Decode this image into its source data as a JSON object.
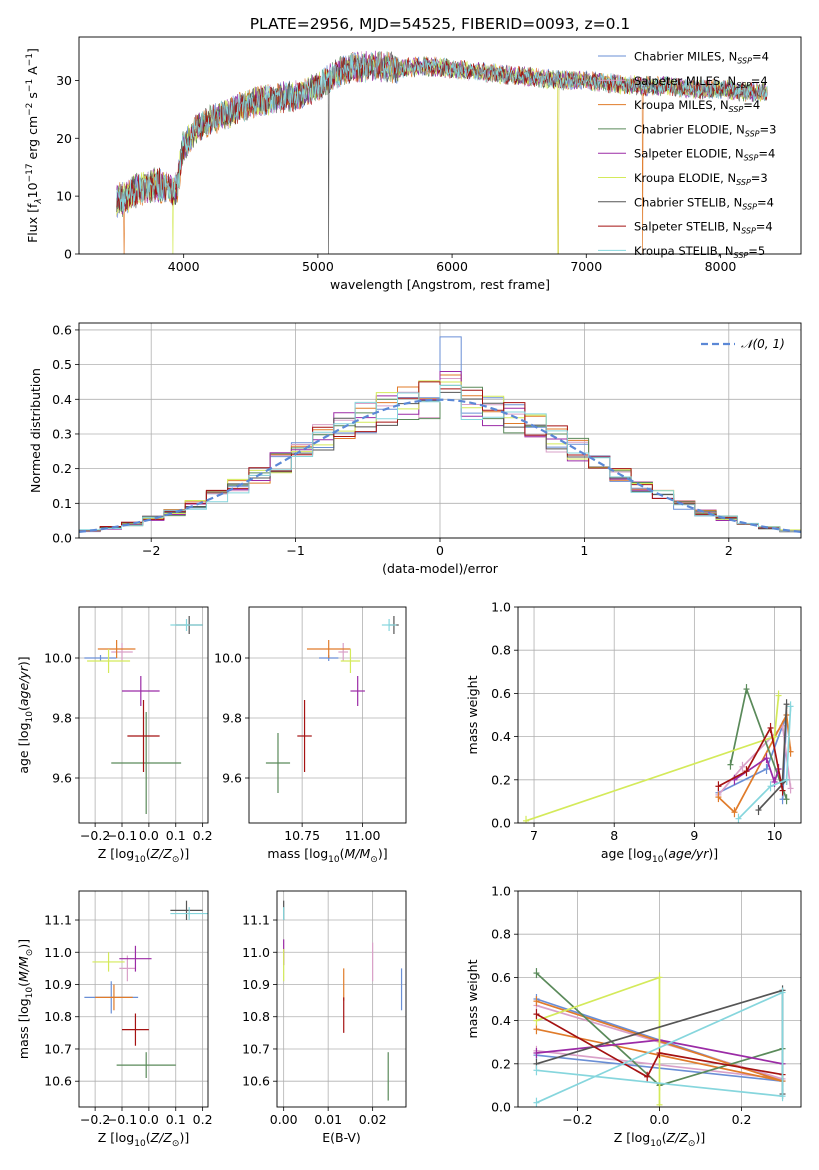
{
  "figure_title": "PLATE=2956, MJD=54525, FIBERID=0093, z=0.1",
  "colors": {
    "Chabrier MILES": "#6a8fd6",
    "Salpeter MILES": "#d9a0c8",
    "Kroupa MILES": "#e07b2a",
    "Chabrier ELODIE": "#5a8a5a",
    "Salpeter ELODIE": "#9b2ba6",
    "Kroupa ELODIE": "#d4ea5a",
    "Chabrier STELIB": "#555555",
    "Salpeter STELIB": "#a51212",
    "Kroupa STELIB": "#86d6dd"
  },
  "chart_data": [
    {
      "id": "spectrum",
      "type": "line",
      "xlabel": "wavelength [Angstrom, rest frame]",
      "ylabel": "Flux [f",
      "xlim": [
        3220,
        8600
      ],
      "ylim": [
        0,
        37.5
      ],
      "xticks": [
        4000,
        5000,
        6000,
        7000,
        8000
      ],
      "yticks": [
        0,
        10,
        20,
        30
      ],
      "legend": "upper-right",
      "grid": false,
      "series": [
        {
          "name": "Chabrier MILES",
          "base": "N",
          "sub": "SSP",
          "tail": "=4"
        },
        {
          "name": "Salpeter MILES",
          "base": "N",
          "sub": "SSP",
          "tail": "=4"
        },
        {
          "name": "Kroupa MILES",
          "base": "N",
          "sub": "SSP",
          "tail": "=4"
        },
        {
          "name": "Chabrier ELODIE",
          "base": "N",
          "sub": "SSP",
          "tail": "=3"
        },
        {
          "name": "Salpeter ELODIE",
          "base": "N",
          "sub": "SSP",
          "tail": "=4"
        },
        {
          "name": "Kroupa ELODIE",
          "base": "N",
          "sub": "SSP",
          "tail": "=3"
        },
        {
          "name": "Chabrier STELIB",
          "base": "N",
          "sub": "SSP",
          "tail": "=4"
        },
        {
          "name": "Salpeter STELIB",
          "base": "N",
          "sub": "SSP",
          "tail": "=4"
        },
        {
          "name": "Kroupa STELIB",
          "base": "N",
          "sub": "SSP",
          "tail": "=5"
        }
      ],
      "continuum": {
        "x": [
          3500,
          3650,
          3800,
          3950,
          3990,
          4100,
          4300,
          4500,
          4700,
          4860,
          5000,
          5200,
          5400,
          5600,
          5800,
          6000,
          6200,
          6400,
          6600,
          6800,
          7000,
          7200,
          7400,
          7600,
          7800,
          8000,
          8200,
          8350
        ],
        "y": [
          9,
          11,
          12,
          11,
          18,
          22,
          24,
          26,
          27,
          27.5,
          29,
          32,
          32.5,
          32,
          32.5,
          32,
          31.5,
          31,
          30.5,
          30,
          30,
          29.5,
          29,
          29,
          28.5,
          28.5,
          28,
          28
        ]
      },
      "dropouts": [
        {
          "series": "Kroupa MILES",
          "x": 3555
        },
        {
          "series": "Kroupa ELODIE",
          "x": 3920
        },
        {
          "series": "Chabrier STELIB",
          "x": 5080
        },
        {
          "series": "Kroupa MILES",
          "x": 6790
        },
        {
          "series": "Kroupa ELODIE",
          "x": 6790
        },
        {
          "series": "Kroupa MILES",
          "x": 7420
        }
      ]
    },
    {
      "id": "residual-hist",
      "type": "line",
      "xlabel": "(data-model)/error",
      "ylabel": "Normed distribution",
      "xlim": [
        -2.5,
        2.5
      ],
      "ylim": [
        0,
        0.62
      ],
      "xticks": [
        -2,
        -1,
        0,
        1,
        2
      ],
      "yticks": [
        0.0,
        0.1,
        0.2,
        0.3,
        0.4,
        0.5,
        0.6
      ],
      "grid": true,
      "legend": "upper-right",
      "curve": {
        "name": "𝒩(0, 1)",
        "mean": 0,
        "sigma": 1,
        "color": "#5b88d6"
      },
      "bins": 34,
      "bin_peaks": [
        0.58,
        0.46,
        0.47,
        0.44,
        0.48,
        0.45,
        0.42,
        0.43,
        0.44
      ]
    },
    {
      "id": "age-vs-Z",
      "type": "scatter",
      "xlabel": "Z [log",
      "ylabel": "age  [log",
      "xlim": [
        -0.26,
        0.22
      ],
      "ylim": [
        9.45,
        10.17
      ],
      "xticks": [
        -0.2,
        -0.1,
        0.0,
        0.1,
        0.2
      ],
      "yticks": [
        9.6,
        9.8,
        10.0
      ],
      "grid": true,
      "points": [
        {
          "series": "Chabrier MILES",
          "x": -0.18,
          "y": 10.0,
          "xerr": 0.06,
          "yerr": 0.01
        },
        {
          "series": "Salpeter MILES",
          "x": -0.1,
          "y": 10.02,
          "xerr": 0.04,
          "yerr": 0.03
        },
        {
          "series": "Kroupa MILES",
          "x": -0.12,
          "y": 10.03,
          "xerr": 0.07,
          "yerr": 0.03
        },
        {
          "series": "Chabrier ELODIE",
          "x": -0.01,
          "y": 9.65,
          "xerr": 0.13,
          "yerr": 0.17
        },
        {
          "series": "Salpeter ELODIE",
          "x": -0.03,
          "y": 9.89,
          "xerr": 0.07,
          "yerr": 0.05
        },
        {
          "series": "Kroupa ELODIE",
          "x": -0.15,
          "y": 9.99,
          "xerr": 0.08,
          "yerr": 0.04
        },
        {
          "series": "Chabrier STELIB",
          "x": 0.15,
          "y": 10.11,
          "xerr": 0.05,
          "yerr": 0.03
        },
        {
          "series": "Salpeter STELIB",
          "x": -0.02,
          "y": 9.74,
          "xerr": 0.06,
          "yerr": 0.12
        },
        {
          "series": "Kroupa STELIB",
          "x": 0.14,
          "y": 10.11,
          "xerr": 0.06,
          "yerr": 0.02
        }
      ]
    },
    {
      "id": "age-vs-mass",
      "type": "scatter",
      "xlabel": "mass [log",
      "ylabel": "",
      "xlim": [
        10.53,
        11.18
      ],
      "ylim": [
        9.45,
        10.17
      ],
      "xticks": [
        10.75,
        11.0
      ],
      "yticks": [
        9.6,
        9.8,
        10.0
      ],
      "grid": true,
      "points": [
        {
          "series": "Chabrier MILES",
          "x": 10.86,
          "y": 10.0,
          "xerr": 0.04,
          "yerr": 0.01
        },
        {
          "series": "Salpeter MILES",
          "x": 10.92,
          "y": 10.02,
          "xerr": 0.02,
          "yerr": 0.03
        },
        {
          "series": "Kroupa MILES",
          "x": 10.86,
          "y": 10.03,
          "xerr": 0.09,
          "yerr": 0.03
        },
        {
          "series": "Chabrier ELODIE",
          "x": 10.65,
          "y": 9.65,
          "xerr": 0.05,
          "yerr": 0.1
        },
        {
          "series": "Salpeter ELODIE",
          "x": 10.98,
          "y": 9.89,
          "xerr": 0.03,
          "yerr": 0.05
        },
        {
          "series": "Kroupa ELODIE",
          "x": 10.95,
          "y": 9.99,
          "xerr": 0.04,
          "yerr": 0.04
        },
        {
          "series": "Chabrier STELIB",
          "x": 11.13,
          "y": 10.11,
          "xerr": 0.02,
          "yerr": 0.03
        },
        {
          "series": "Salpeter STELIB",
          "x": 10.76,
          "y": 9.74,
          "xerr": 0.03,
          "yerr": 0.12
        },
        {
          "series": "Kroupa STELIB",
          "x": 11.11,
          "y": 10.11,
          "xerr": 0.03,
          "yerr": 0.02
        }
      ]
    },
    {
      "id": "massweight-vs-age",
      "type": "line",
      "xlabel": "age  [log",
      "ylabel": "mass weight",
      "xlim": [
        6.8,
        10.33
      ],
      "ylim": [
        0,
        1
      ],
      "xticks": [
        7,
        8,
        9,
        10
      ],
      "yticks": [
        0.0,
        0.2,
        0.4,
        0.6,
        0.8,
        1.0
      ],
      "grid": true,
      "series": [
        {
          "name": "Chabrier MILES",
          "x": [
            9.3,
            9.9,
            10.15,
            10.1
          ],
          "y": [
            0.14,
            0.25,
            0.5,
            0.11
          ]
        },
        {
          "name": "Salpeter MILES",
          "x": [
            9.3,
            9.6,
            10.1,
            10.2
          ],
          "y": [
            0.13,
            0.26,
            0.45,
            0.16
          ]
        },
        {
          "name": "Kroupa MILES",
          "x": [
            9.3,
            9.5,
            10.15,
            10.2
          ],
          "y": [
            0.12,
            0.05,
            0.5,
            0.33
          ]
        },
        {
          "name": "Chabrier ELODIE",
          "x": [
            9.45,
            9.65,
            10.15
          ],
          "y": [
            0.27,
            0.62,
            0.11
          ]
        },
        {
          "name": "Salpeter ELODIE",
          "x": [
            9.5,
            9.9,
            10.0,
            10.05
          ],
          "y": [
            0.2,
            0.3,
            0.19,
            0.25
          ]
        },
        {
          "name": "Kroupa ELODIE",
          "x": [
            6.9,
            10.0,
            10.05
          ],
          "y": [
            0.01,
            0.4,
            0.59
          ]
        },
        {
          "name": "Chabrier STELIB",
          "x": [
            9.8,
            10.15,
            10.1,
            10.15
          ],
          "y": [
            0.06,
            0.2,
            0.2,
            0.55
          ]
        },
        {
          "name": "Salpeter STELIB",
          "x": [
            9.3,
            9.65,
            9.95,
            10.1
          ],
          "y": [
            0.17,
            0.24,
            0.44,
            0.15
          ]
        },
        {
          "name": "Kroupa STELIB",
          "x": [
            9.55,
            9.95,
            10.15,
            10.2
          ],
          "y": [
            0.02,
            0.17,
            0.2,
            0.54
          ]
        }
      ]
    },
    {
      "id": "mass-vs-Z",
      "type": "scatter",
      "xlabel": "Z [log",
      "ylabel": "mass [log",
      "xlim": [
        -0.26,
        0.22
      ],
      "ylim": [
        10.52,
        11.19
      ],
      "xticks": [
        -0.2,
        -0.1,
        0.0,
        0.1,
        0.2
      ],
      "yticks": [
        10.6,
        10.7,
        10.8,
        10.9,
        11.0,
        11.1
      ],
      "grid": true,
      "points": [
        {
          "series": "Chabrier MILES",
          "x": -0.14,
          "y": 10.86,
          "xerr": 0.1,
          "yerr": 0.05
        },
        {
          "series": "Salpeter MILES",
          "x": -0.08,
          "y": 10.95,
          "xerr": 0.03,
          "yerr": 0.04
        },
        {
          "series": "Kroupa MILES",
          "x": -0.13,
          "y": 10.86,
          "xerr": 0.07,
          "yerr": 0.04
        },
        {
          "series": "Chabrier ELODIE",
          "x": -0.01,
          "y": 10.65,
          "xerr": 0.11,
          "yerr": 0.04
        },
        {
          "series": "Salpeter ELODIE",
          "x": -0.05,
          "y": 10.98,
          "xerr": 0.06,
          "yerr": 0.04
        },
        {
          "series": "Kroupa ELODIE",
          "x": -0.15,
          "y": 10.97,
          "xerr": 0.06,
          "yerr": 0.03
        },
        {
          "series": "Chabrier STELIB",
          "x": 0.14,
          "y": 11.13,
          "xerr": 0.06,
          "yerr": 0.03
        },
        {
          "series": "Salpeter STELIB",
          "x": -0.05,
          "y": 10.76,
          "xerr": 0.05,
          "yerr": 0.05
        },
        {
          "series": "Kroupa STELIB",
          "x": 0.15,
          "y": 11.12,
          "xerr": 0.07,
          "yerr": 0.02
        }
      ]
    },
    {
      "id": "mass-vs-EBV",
      "type": "scatter",
      "xlabel": "E(B-V)",
      "ylabel": "",
      "xlim": [
        -0.0015,
        0.0275
      ],
      "ylim": [
        10.52,
        11.19
      ],
      "xticks": [
        0.0,
        0.01,
        0.02
      ],
      "yticks": [
        10.6,
        10.7,
        10.8,
        10.9,
        11.0,
        11.1
      ],
      "grid": true,
      "points": [
        {
          "series": "Chabrier MILES",
          "x": 0.0265,
          "y": 10.885,
          "xerr": 0,
          "yerr": 0.065
        },
        {
          "series": "Salpeter MILES",
          "x": 0.02,
          "y": 10.97,
          "xerr": 0,
          "yerr": 0.06
        },
        {
          "series": "Kroupa MILES",
          "x": 0.0135,
          "y": 10.9,
          "xerr": 0,
          "yerr": 0.05
        },
        {
          "series": "Chabrier ELODIE",
          "x": 0.0235,
          "y": 10.615,
          "xerr": 0,
          "yerr": 0.075
        },
        {
          "series": "Salpeter ELODIE",
          "x": 0.0,
          "y": 11.0,
          "xerr": 0,
          "yerr": 0.04
        },
        {
          "series": "Kroupa ELODIE",
          "x": 0.0,
          "y": 10.96,
          "xerr": 0,
          "yerr": 0.05
        },
        {
          "series": "Chabrier STELIB",
          "x": 0.0,
          "y": 11.13,
          "xerr": 0,
          "yerr": 0.03
        },
        {
          "series": "Salpeter STELIB",
          "x": 0.0135,
          "y": 10.805,
          "xerr": 0,
          "yerr": 0.055
        },
        {
          "series": "Kroupa STELIB",
          "x": 0.0,
          "y": 11.12,
          "xerr": 0,
          "yerr": 0.02
        }
      ]
    },
    {
      "id": "massweight-vs-Z",
      "type": "line",
      "xlabel": "Z [log",
      "ylabel": "mass weight",
      "xlim": [
        -0.345,
        0.345
      ],
      "ylim": [
        0,
        1
      ],
      "xticks": [
        -0.2,
        0.0,
        0.2
      ],
      "yticks": [
        0.0,
        0.2,
        0.4,
        0.6,
        0.8,
        1.0
      ],
      "grid": true,
      "series": [
        {
          "name": "Chabrier MILES",
          "x": [
            -0.3,
            0.3,
            -0.3
          ],
          "y": [
            0.5,
            0.12,
            0.24
          ]
        },
        {
          "name": "Salpeter MILES",
          "x": [
            -0.3,
            0.3,
            -0.3
          ],
          "y": [
            0.47,
            0.13,
            0.26
          ]
        },
        {
          "name": "Kroupa MILES",
          "x": [
            -0.3,
            0.3,
            -0.3
          ],
          "y": [
            0.49,
            0.12,
            0.36
          ]
        },
        {
          "name": "Chabrier ELODIE",
          "x": [
            -0.3,
            0.0,
            0.3
          ],
          "y": [
            0.62,
            0.1,
            0.27
          ]
        },
        {
          "name": "Salpeter ELODIE",
          "x": [
            -0.3,
            0.0,
            0.3
          ],
          "y": [
            0.25,
            0.31,
            0.2
          ]
        },
        {
          "name": "Kroupa ELODIE",
          "x": [
            -0.3,
            0.0,
            0.0
          ],
          "y": [
            0.4,
            0.6,
            0.01
          ]
        },
        {
          "name": "Chabrier STELIB",
          "x": [
            -0.3,
            0.3,
            0.3
          ],
          "y": [
            0.2,
            0.54,
            0.06
          ]
        },
        {
          "name": "Salpeter STELIB",
          "x": [
            -0.3,
            -0.03,
            0.0,
            0.3
          ],
          "y": [
            0.43,
            0.14,
            0.25,
            0.15
          ]
        },
        {
          "name": "Kroupa STELIB",
          "x": [
            -0.3,
            0.3,
            0.3,
            -0.3
          ],
          "y": [
            0.02,
            0.53,
            0.05,
            0.17
          ]
        }
      ]
    }
  ]
}
